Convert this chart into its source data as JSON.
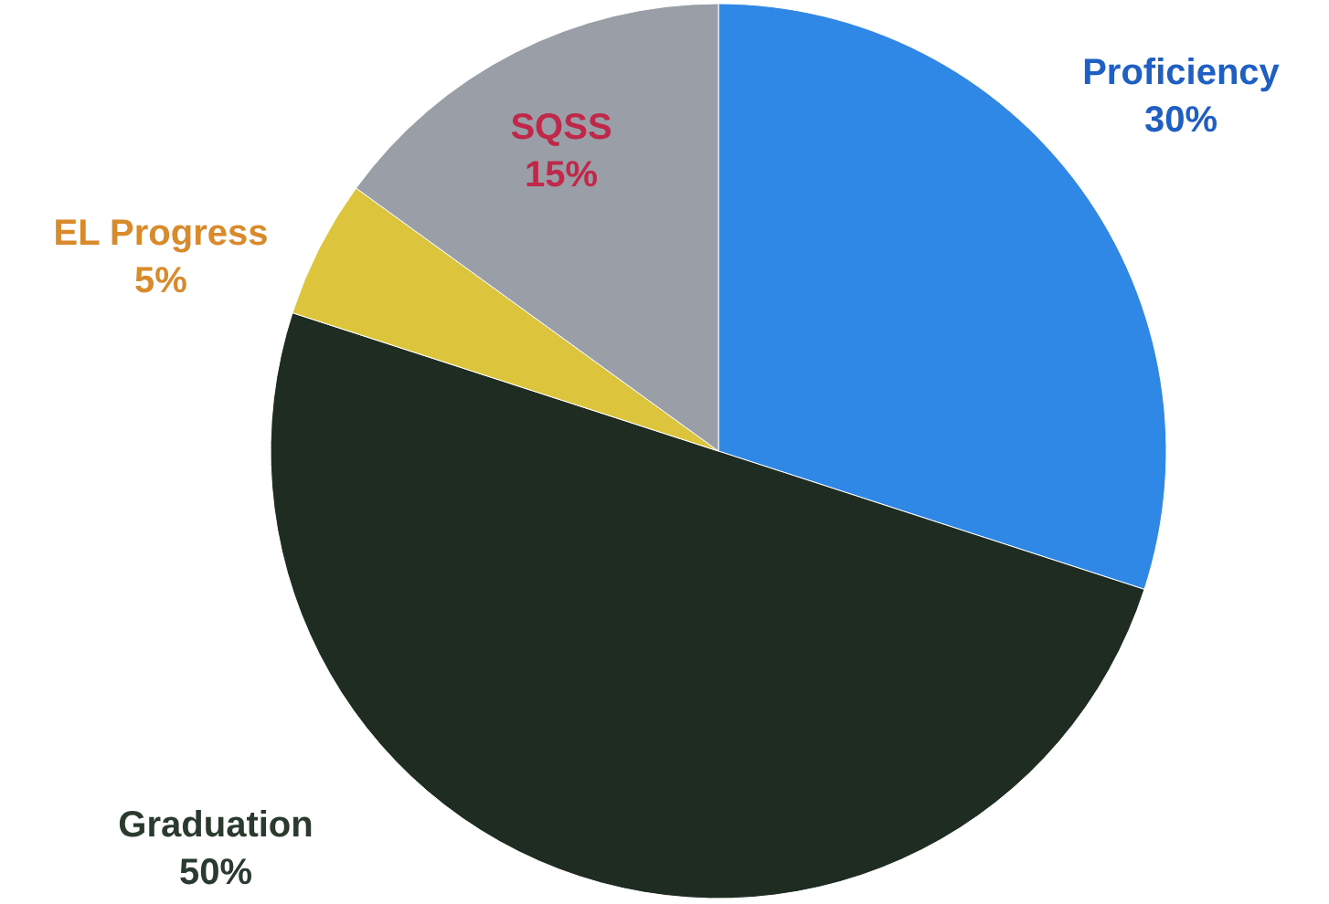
{
  "chart_data": {
    "type": "pie",
    "categories": [
      "Proficiency",
      "Graduation",
      "EL Progress",
      "SQSS"
    ],
    "values": [
      30,
      50,
      5,
      15
    ],
    "value_labels": [
      "30%",
      "50%",
      "5%",
      "15%"
    ],
    "colors": [
      "#2f88e6",
      "#1f2c22",
      "#dcc53c",
      "#9a9ea6"
    ]
  }
}
